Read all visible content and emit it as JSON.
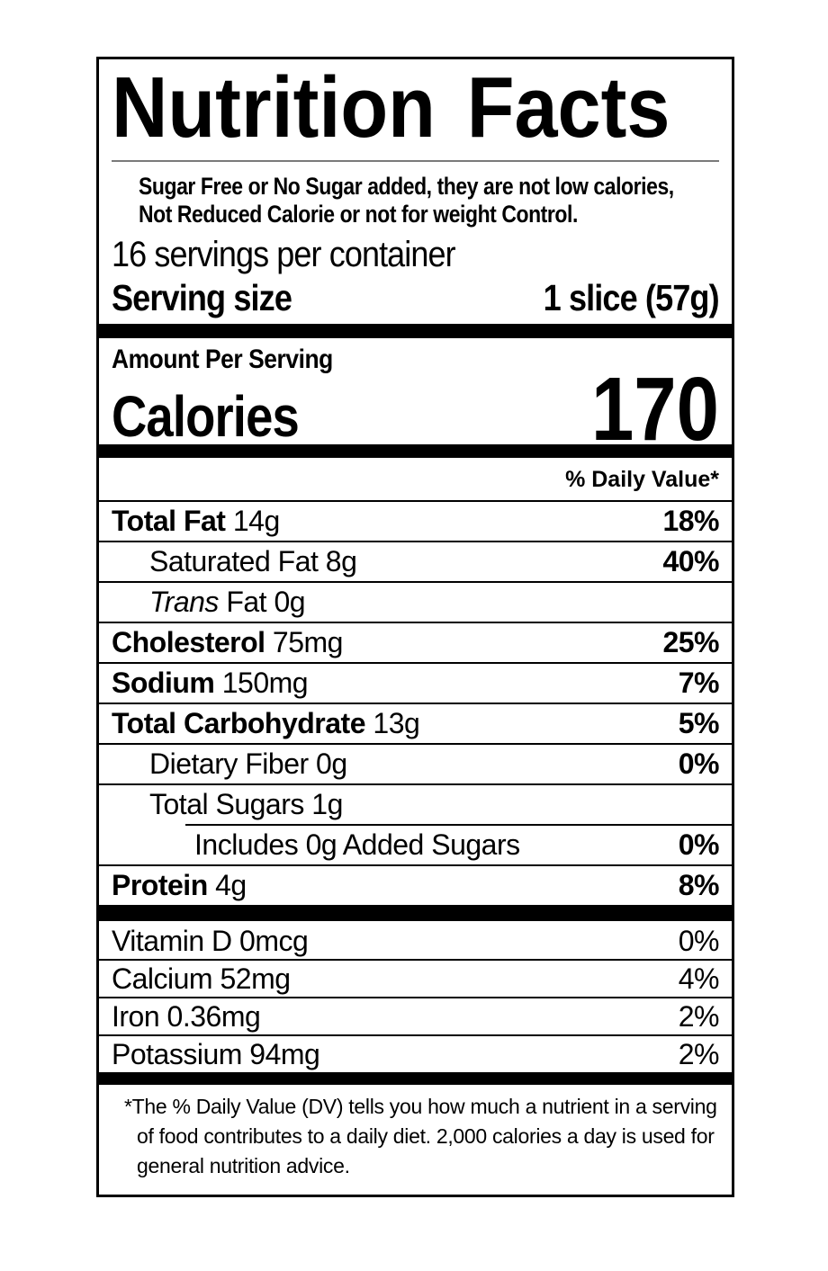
{
  "label": {
    "title": "Nutrition Facts",
    "disclaimer": {
      "line1": "Sugar Free or No Sugar added, they are not low calories,",
      "line2": "Not Reduced Calorie or not for weight Control."
    },
    "servings_per_container": "16 servings per container",
    "serving_size": {
      "label": "Serving size",
      "value": "1 slice (57g)"
    },
    "amount_per_serving": "Amount Per Serving",
    "calories": {
      "label": "Calories",
      "value": "170"
    },
    "daily_value_header": "% Daily Value*",
    "nutrients": [
      {
        "name": "Total Fat",
        "amount": "14g",
        "dv": "18%"
      },
      {
        "name": "Saturated Fat",
        "amount": "8g",
        "dv": "40%"
      },
      {
        "name_italic": "Trans",
        "name": "Fat",
        "amount": "0g",
        "dv": ""
      },
      {
        "name": "Cholesterol",
        "amount": "75mg",
        "dv": "25%"
      },
      {
        "name": "Sodium",
        "amount": "150mg",
        "dv": "7%"
      },
      {
        "name": "Total Carbohydrate",
        "amount": "13g",
        "dv": "5%"
      },
      {
        "name": "Dietary Fiber",
        "amount": "0g",
        "dv": "0%"
      },
      {
        "name": "Total Sugars",
        "amount": "1g",
        "dv": ""
      },
      {
        "name": "Includes 0g Added Sugars",
        "amount": "",
        "dv": "0%"
      },
      {
        "name": "Protein",
        "amount": "4g",
        "dv": "8%"
      }
    ],
    "micronutrients": [
      {
        "name": "Vitamin D",
        "amount": "0mcg",
        "dv": "0%"
      },
      {
        "name": "Calcium",
        "amount": "52mg",
        "dv": "4%"
      },
      {
        "name": "Iron",
        "amount": "0.36mg",
        "dv": "2%"
      },
      {
        "name": "Potassium",
        "amount": "94mg",
        "dv": "2%"
      }
    ],
    "footnote_marker": "*",
    "footnote": "The % Daily Value (DV) tells you how much a nutrient in a serving of food contributes to a daily diet. 2,000 calories a day is used for general nutrition advice.",
    "colors": {
      "ink": "#000000",
      "paper": "#ffffff",
      "rule_gray": "#7a7a7a"
    }
  }
}
